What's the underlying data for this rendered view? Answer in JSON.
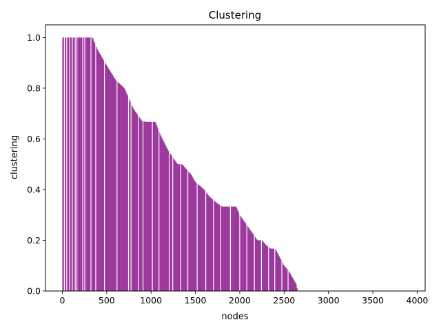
{
  "chart_data": {
    "type": "bar",
    "title": "Clustering",
    "xlabel": "nodes",
    "ylabel": "clustering",
    "xlim": [
      -190,
      4090
    ],
    "ylim": [
      0,
      1.05
    ],
    "grid": false,
    "bar_color": "#9b359b",
    "x_ticks": [
      "0",
      "500",
      "1000",
      "1500",
      "2000",
      "2500",
      "3000",
      "3500",
      "4000"
    ],
    "y_ticks": [
      "0.0",
      "0.2",
      "0.4",
      "0.6",
      "0.8",
      "1.0"
    ],
    "n_nonzero_nodes": 2650,
    "profile": {
      "description": "clustering coefficient per node, sorted descending",
      "x": [
        0,
        340,
        400,
        500,
        600,
        700,
        800,
        900,
        950,
        1050,
        1100,
        1200,
        1300,
        1350,
        1450,
        1500,
        1600,
        1650,
        1700,
        1750,
        1800,
        1900,
        1960,
        2000,
        2100,
        2200,
        2250,
        2300,
        2350,
        2400,
        2500,
        2550,
        2600,
        2640,
        2650
      ],
      "y": [
        1.0,
        1.0,
        0.95,
        0.89,
        0.833,
        0.8,
        0.72,
        0.67,
        0.667,
        0.667,
        0.62,
        0.55,
        0.5,
        0.5,
        0.46,
        0.43,
        0.4,
        0.375,
        0.36,
        0.345,
        0.333,
        0.333,
        0.333,
        0.3,
        0.25,
        0.2,
        0.2,
        0.18,
        0.167,
        0.167,
        0.1,
        0.08,
        0.05,
        0.025,
        0.0
      ]
    }
  }
}
